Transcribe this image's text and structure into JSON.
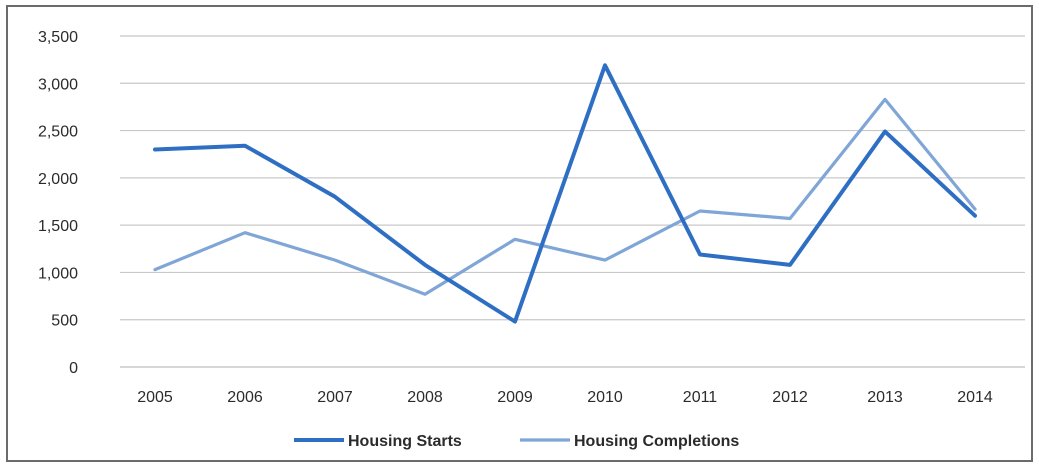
{
  "chart_data": {
    "type": "line",
    "categories": [
      "2005",
      "2006",
      "2007",
      "2008",
      "2009",
      "2010",
      "2011",
      "2012",
      "2013",
      "2014"
    ],
    "series": [
      {
        "name": "Housing Starts",
        "color": "#2e6fc4",
        "values": [
          2300,
          2340,
          1800,
          1080,
          480,
          3190,
          1190,
          1080,
          2490,
          1600
        ]
      },
      {
        "name": "Housing Completions",
        "color": "#7fa6d6",
        "values": [
          1030,
          1420,
          1130,
          770,
          1350,
          1130,
          1650,
          1570,
          2830,
          1670
        ]
      }
    ],
    "y_ticks": [
      "0",
      "500",
      "1,000",
      "1,500",
      "2,000",
      "2,500",
      "3,000",
      "3,500"
    ],
    "ylim": [
      0,
      3500
    ],
    "grid": "horizontal",
    "legend_position": "bottom",
    "title": "",
    "xlabel": "",
    "ylabel": ""
  }
}
